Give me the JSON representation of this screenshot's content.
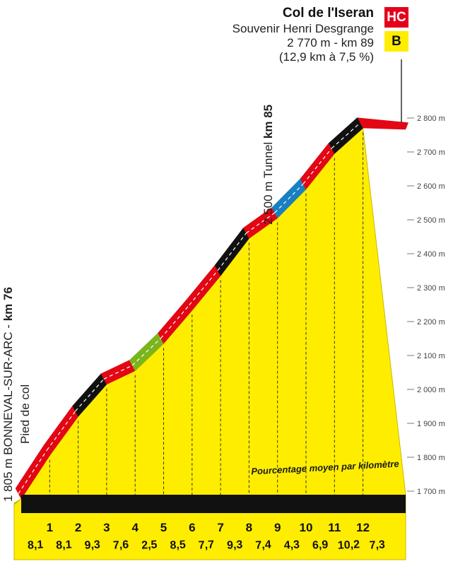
{
  "summit": {
    "name": "Col de l'Iseran",
    "subtitle": "Souvenir Henri Desgrange",
    "altitude_km": "2 770 m - km 89",
    "stats": "(12,9 km à 7,5 %)",
    "category": "HC",
    "bonus": "B"
  },
  "start_label": {
    "main": "1 805 m BONNEVAL-SUR-ARC - ",
    "km": "km 76",
    "sub": "Pied de col"
  },
  "tunnel_label": {
    "main": "2 500 m Tunnel ",
    "km": "km 85"
  },
  "legend_note": "Pourcentage moyen par kilomètre",
  "colors": {
    "fill": "#ffed00",
    "red": "#e30613",
    "black": "#111111",
    "green": "#7ab51d",
    "blue": "#1a7fc1",
    "base": "#111111",
    "badge_hc": "#e4001b"
  },
  "chart_data": {
    "type": "area",
    "x_unit": "km from foot of climb",
    "y_unit": "m",
    "altitude_points": [
      {
        "km": 0,
        "alt": 1677
      },
      {
        "km": 1,
        "alt": 1805
      },
      {
        "km": 2,
        "alt": 1920
      },
      {
        "km": 3,
        "alt": 2015
      },
      {
        "km": 4,
        "alt": 2055
      },
      {
        "km": 5,
        "alt": 2135
      },
      {
        "km": 6,
        "alt": 2233
      },
      {
        "km": 7,
        "alt": 2335
      },
      {
        "km": 8,
        "alt": 2445
      },
      {
        "km": 9,
        "alt": 2505
      },
      {
        "km": 10,
        "alt": 2590
      },
      {
        "km": 11,
        "alt": 2695
      },
      {
        "km": 12,
        "alt": 2770
      }
    ],
    "km_marks": [
      "1",
      "2",
      "3",
      "4",
      "5",
      "6",
      "7",
      "8",
      "9",
      "10",
      "11",
      "12"
    ],
    "gradients": [
      {
        "label": "8,1",
        "color": "red"
      },
      {
        "label": "8,1",
        "color": "red"
      },
      {
        "label": "9,3",
        "color": "black"
      },
      {
        "label": "7,6",
        "color": "red"
      },
      {
        "label": "2,5",
        "color": "green"
      },
      {
        "label": "8,5",
        "color": "red"
      },
      {
        "label": "7,7",
        "color": "red"
      },
      {
        "label": "9,3",
        "color": "black"
      },
      {
        "label": "7,4",
        "color": "red"
      },
      {
        "label": "4,3",
        "color": "blue"
      },
      {
        "label": "6,9",
        "color": "red"
      },
      {
        "label": "10,2",
        "color": "black"
      },
      {
        "label": "7,3",
        "color": "red"
      }
    ],
    "y_ticks": [
      "1 700 m",
      "1 800 m",
      "1 900 m",
      "2 000 m",
      "2 100 m",
      "2 200 m",
      "2 300 m",
      "2 400 m",
      "2 500 m",
      "2 600 m",
      "2 700 m",
      "2 800 m"
    ],
    "y_tick_values": [
      1700,
      1800,
      1900,
      2000,
      2100,
      2200,
      2300,
      2400,
      2500,
      2600,
      2700,
      2800
    ],
    "ylim": [
      1700,
      2800
    ]
  }
}
